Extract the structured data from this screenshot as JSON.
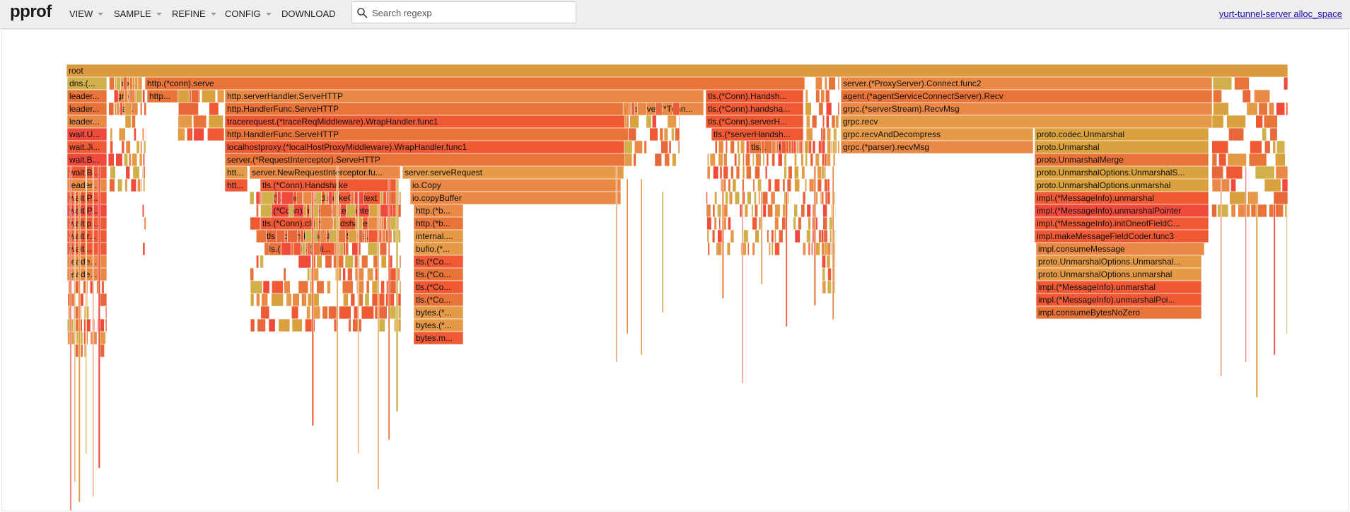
{
  "app": {
    "logo": "pprof",
    "menu": [
      {
        "id": "view",
        "label": "VIEW",
        "has_caret": true
      },
      {
        "id": "sample",
        "label": "SAMPLE",
        "has_caret": true
      },
      {
        "id": "refine",
        "label": "REFINE",
        "has_caret": true
      },
      {
        "id": "config",
        "label": "CONFIG",
        "has_caret": true
      },
      {
        "id": "download",
        "label": "DOWNLOAD",
        "has_caret": false
      }
    ],
    "search": {
      "placeholder": "Search regexp",
      "value": "",
      "icon": "search-icon"
    },
    "profile_link": "yurt-tunnel-server alloc_space"
  },
  "colors": {
    "root": "#dc9a3e",
    "palette": [
      "#ef5a35",
      "#e8743a",
      "#e98945",
      "#e59a47",
      "#d9a23e",
      "#f04a3c",
      "#e6683b",
      "#cfb04a"
    ],
    "toolbar_bg": "#eeeeee",
    "link": "#1a0dab"
  },
  "flamegraph": {
    "root_label": "root",
    "labels": [
      "dns.(...",
      "grp...",
      "http.(*conn).serve",
      "server.(*ProxyServer).Connect.func2",
      "leader...",
      "grp...",
      "http...",
      "http.serverHandler.ServeHTTP",
      "tls.(*Conn).Handsh...",
      "agent.(*agentServiceConnectServer).Recv",
      "leader...",
      "tra...",
      "http.HandlerFunc.ServeHTTP",
      "server.(*Tunn...",
      "tls.(*Conn).handsha...",
      "grpc.(*serverStream).RecvMsg",
      "leader...",
      "tracerequest.(*traceReqMiddleware).WrapHandler.func1",
      "tls.(*Conn).serverH...",
      "grpc.recv",
      "wait.U...",
      "http.HandlerFunc.ServeHTTP",
      "tls.(*serverHandsh...",
      "grpc.recvAndDecompress",
      "proto.codec.Unmarshal",
      "wait.Ji...",
      "localhostproxy.(*localHostProxyMiddleware).WrapHandler.func1",
      "tls...",
      "tls.(...",
      "grpc.(*parser).recvMsg",
      "proto.Unmarshal",
      "wait.B...",
      "server.(*RequestInterceptor).ServeHTTP",
      "proto.UnmarshalMerge",
      "wait.B...",
      "htt...",
      "server.NewRequestInterceptor.fu...",
      "server.serveRequest",
      "proto.UnmarshalOptions.UnmarshalS...",
      "leader...",
      "htt...",
      "tls.(*Conn).Handshake",
      "io.Copy",
      "proto.UnmarshalOptions.unmarshal",
      "wait.P...",
      "tls.(*Conn).HandshakeContext",
      "io.copyBuffer",
      "impl.(*MessageInfo).unmarshal",
      "wait.P...",
      "tls.(*Conn).handshakeContext",
      "http.(*b...",
      "impl.(*MessageInfo).unmarshalPointer",
      "wait.p...",
      "tls.(*Conn).clientHandshake",
      "http.(*b...",
      "impl.(*MessageInfo).initOneofFieldC...",
      "wait.r...",
      "tls.(*clientHandshakeState...",
      "internal....",
      "impl.makeMessageFieldCoder.func3",
      "wait....",
      "tls.(...",
      "tls.(*cli...",
      "bufio.(*...",
      "impl.consumeMessage",
      "leade...",
      "tls.(*Co...",
      "proto.UnmarshalOptions.Unmarshal...",
      "leade...",
      "tls.(*Co...",
      "proto.UnmarshalOptions.unmarshal",
      "tls.(*Co...",
      "impl.(*MessageInfo).unmarshal",
      "tls.(*Co...",
      "impl.(*MessageInfo).unmarshalPoi...",
      "bytes.(*...",
      "impl.consumeBytesNoZero",
      "bytes.(*...",
      "bytes.m..."
    ]
  }
}
